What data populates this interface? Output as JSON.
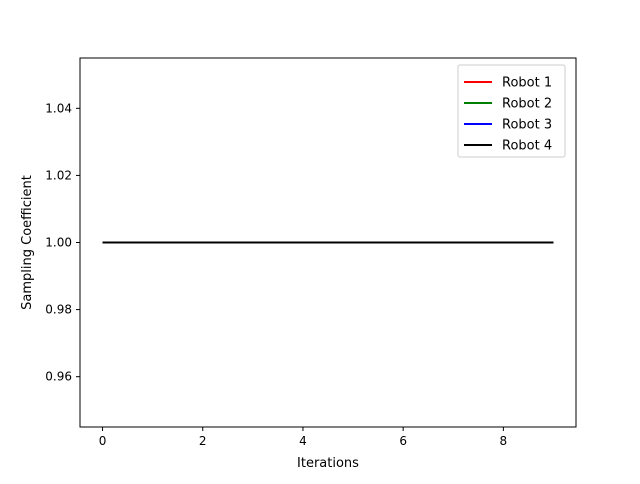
{
  "chart_data": {
    "type": "line",
    "title": "",
    "xlabel": "Iterations",
    "ylabel": "Sampling Coefficient",
    "xlim": [
      -0.45,
      9.45
    ],
    "ylim": [
      0.945,
      1.055
    ],
    "xticks": [
      0,
      2,
      4,
      6,
      8
    ],
    "xtick_labels": [
      "0",
      "2",
      "4",
      "6",
      "8"
    ],
    "yticks": [
      0.96,
      0.98,
      1.0,
      1.02,
      1.04
    ],
    "ytick_labels": [
      "0.96",
      "0.98",
      "1.00",
      "1.02",
      "1.04"
    ],
    "grid": false,
    "legend_position": "top-right",
    "x": [
      0,
      1,
      2,
      3,
      4,
      5,
      6,
      7,
      8,
      9
    ],
    "series": [
      {
        "name": "Robot 1",
        "color": "#ff0000",
        "values": [
          1,
          1,
          1,
          1,
          1,
          1,
          1,
          1,
          1,
          1
        ]
      },
      {
        "name": "Robot 2",
        "color": "#008000",
        "values": [
          1,
          1,
          1,
          1,
          1,
          1,
          1,
          1,
          1,
          1
        ]
      },
      {
        "name": "Robot 3",
        "color": "#0000ff",
        "values": [
          1,
          1,
          1,
          1,
          1,
          1,
          1,
          1,
          1,
          1
        ]
      },
      {
        "name": "Robot 4",
        "color": "#000000",
        "values": [
          1,
          1,
          1,
          1,
          1,
          1,
          1,
          1,
          1,
          1
        ]
      }
    ]
  }
}
